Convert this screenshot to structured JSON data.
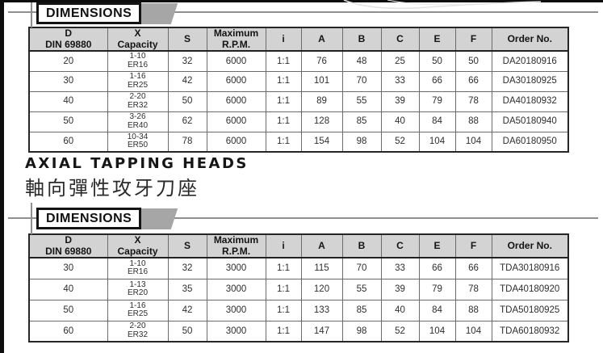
{
  "colors": {
    "banner_tail_gray": "#a6a6a6",
    "table_header_bg": "#d3d3d3",
    "border_dark": "#262626",
    "rule_gray": "#8f8f8f"
  },
  "heading": {
    "title_en": "AXIAL TAPPING HEADS",
    "title_zh": "軸向彈性攻牙刀座"
  },
  "sections": [
    {
      "banner_label": "DIMENSIONS",
      "table": {
        "headers": [
          "D\nDIN 69880",
          "X\nCapacity",
          "S",
          "Maximum\nR.P.M.",
          "i",
          "A",
          "B",
          "C",
          "E",
          "F",
          "Order No."
        ],
        "rows": [
          [
            "20",
            "1-10\nER16",
            "32",
            "6000",
            "1:1",
            "76",
            "48",
            "25",
            "50",
            "50",
            "DA20180916"
          ],
          [
            "30",
            "1-16\nER25",
            "42",
            "6000",
            "1:1",
            "101",
            "70",
            "33",
            "66",
            "66",
            "DA30180925"
          ],
          [
            "40",
            "2-20\nER32",
            "50",
            "6000",
            "1:1",
            "89",
            "55",
            "39",
            "79",
            "78",
            "DA40180932"
          ],
          [
            "50",
            "3-26\nER40",
            "62",
            "6000",
            "1:1",
            "128",
            "85",
            "40",
            "84",
            "88",
            "DA50180940"
          ],
          [
            "60",
            "10-34\nER50",
            "78",
            "6000",
            "1:1",
            "154",
            "98",
            "52",
            "104",
            "104",
            "DA60180950"
          ]
        ]
      }
    },
    {
      "banner_label": "DIMENSIONS",
      "table": {
        "headers": [
          "D\nDIN 69880",
          "X\nCapacity",
          "S",
          "Maximum\nR.P.M.",
          "i",
          "A",
          "B",
          "C",
          "E",
          "F",
          "Order No."
        ],
        "rows": [
          [
            "30",
            "1-10\nER16",
            "32",
            "3000",
            "1:1",
            "115",
            "70",
            "33",
            "66",
            "66",
            "TDA30180916"
          ],
          [
            "40",
            "1-13\nER20",
            "35",
            "3000",
            "1:1",
            "120",
            "55",
            "39",
            "79",
            "78",
            "TDA40180920"
          ],
          [
            "50",
            "1-16\nER25",
            "42",
            "3000",
            "1:1",
            "133",
            "85",
            "40",
            "84",
            "88",
            "TDA50180925"
          ],
          [
            "60",
            "2-20\nER32",
            "50",
            "3000",
            "1:1",
            "147",
            "98",
            "52",
            "104",
            "104",
            "TDA60180932"
          ]
        ]
      }
    }
  ]
}
